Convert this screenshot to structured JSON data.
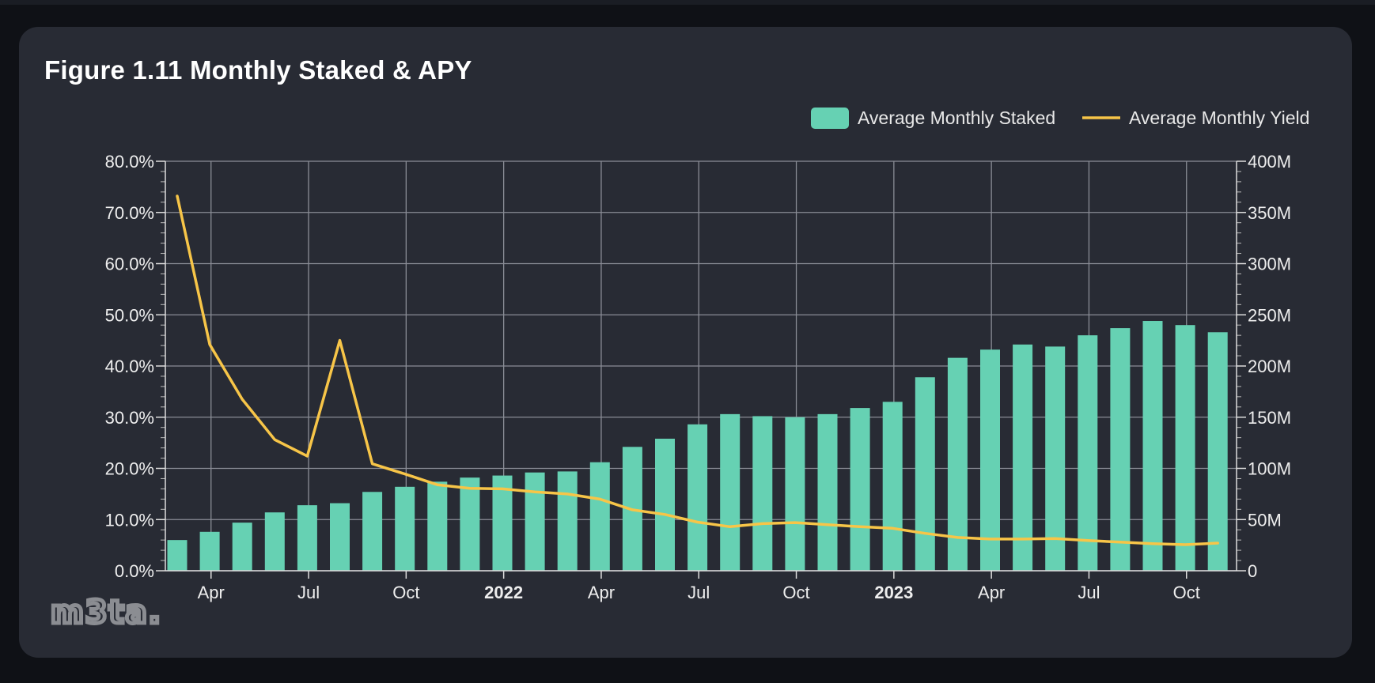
{
  "title": "Figure 1.11 Monthly Staked & APY",
  "logo_text": "m3ta.",
  "colors": {
    "bar": "#66d1b3",
    "line": "#f7c548",
    "grid": "#8a8d96",
    "background": "#282b34"
  },
  "legend": {
    "staked_label": "Average Monthly Staked",
    "yield_label": "Average Monthly Yield"
  },
  "chart_data": {
    "type": "bar",
    "title": "Figure 1.11 Monthly Staked & APY",
    "x_tick_labels": [
      "Apr",
      "Jul",
      "Oct",
      "2022",
      "Apr",
      "Jul",
      "Oct",
      "2023",
      "Apr",
      "Jul",
      "Oct"
    ],
    "x_tick_bold": [
      false,
      false,
      false,
      true,
      false,
      false,
      false,
      true,
      false,
      false,
      false
    ],
    "left_axis": {
      "ylim": [
        0,
        80
      ],
      "tick_labels": [
        "0.0%",
        "10.0%",
        "20.0%",
        "30.0%",
        "40.0%",
        "50.0%",
        "60.0%",
        "70.0%",
        "80.0%"
      ]
    },
    "right_axis": {
      "ylim": [
        0,
        400
      ],
      "tick_labels": [
        "0",
        "50M",
        "100M",
        "150M",
        "200M",
        "250M",
        "300M",
        "350M",
        "400M"
      ]
    },
    "months": [
      "2021-03",
      "2021-04",
      "2021-05",
      "2021-06",
      "2021-07",
      "2021-08",
      "2021-09",
      "2021-10",
      "2021-11",
      "2021-12",
      "2022-01",
      "2022-02",
      "2022-03",
      "2022-04",
      "2022-05",
      "2022-06",
      "2022-07",
      "2022-08",
      "2022-09",
      "2022-10",
      "2022-11",
      "2022-12",
      "2023-01",
      "2023-02",
      "2023-03",
      "2023-04",
      "2023-05",
      "2023-06",
      "2023-07",
      "2023-08",
      "2023-09",
      "2023-10",
      "2023-11"
    ],
    "series": [
      {
        "name": "Average Monthly Staked",
        "kind": "bar",
        "axis": "right",
        "unit": "M",
        "values": [
          30,
          38,
          47,
          57,
          64,
          66,
          77,
          82,
          87,
          91,
          93,
          96,
          97,
          106,
          121,
          129,
          143,
          153,
          151,
          150,
          153,
          159,
          165,
          189,
          208,
          216,
          221,
          219,
          230,
          237,
          244,
          240,
          233
        ]
      },
      {
        "name": "Average Monthly Yield",
        "kind": "line",
        "axis": "left",
        "unit": "%",
        "values": [
          73.2,
          44.2,
          33.5,
          25.6,
          22.4,
          45.0,
          20.9,
          18.9,
          16.8,
          16.1,
          16.0,
          15.4,
          15.0,
          14.0,
          11.9,
          11.0,
          9.5,
          8.6,
          9.2,
          9.4,
          9.0,
          8.6,
          8.3,
          7.3,
          6.5,
          6.2,
          6.2,
          6.3,
          5.9,
          5.6,
          5.3,
          5.1,
          5.4
        ]
      }
    ]
  }
}
